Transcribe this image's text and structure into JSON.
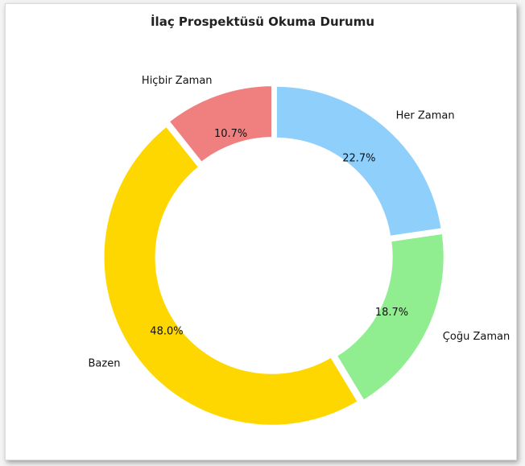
{
  "chart_data": {
    "type": "pie",
    "variant": "donut",
    "title": "İlaç Prospektüsü Okuma Durumu",
    "categories": [
      "Her Zaman",
      "Çoğu Zaman",
      "Bazen",
      "Hiçbir Zaman"
    ],
    "values": [
      22.7,
      18.7,
      48.0,
      10.7
    ],
    "value_labels": [
      "22.7%",
      "18.7%",
      "48.0%",
      "10.7%"
    ],
    "colors": [
      "#8ecffb",
      "#90ee90",
      "#ffd700",
      "#f08080"
    ],
    "start_angle_deg": 90,
    "direction": "clockwise",
    "legend": "none"
  }
}
